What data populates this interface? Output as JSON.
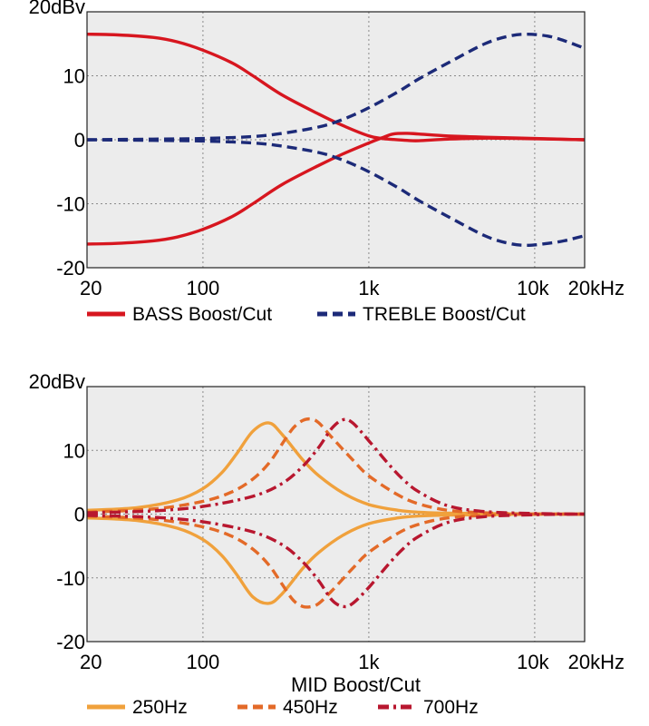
{
  "chart_data": [
    {
      "type": "line",
      "title": "",
      "xlabel": "",
      "ylabel": "",
      "x_scale": "log",
      "xlim": [
        20,
        20000
      ],
      "ylim": [
        -20,
        20
      ],
      "x_ticks": [
        {
          "value": 20,
          "label": "20"
        },
        {
          "value": 100,
          "label": "100"
        },
        {
          "value": 1000,
          "label": "1k"
        },
        {
          "value": 10000,
          "label": "10k"
        },
        {
          "value": 20000,
          "label": "20kHz"
        }
      ],
      "y_ticks": [
        {
          "value": 20,
          "label": "20dBv"
        },
        {
          "value": 10,
          "label": "10"
        },
        {
          "value": 0,
          "label": "0"
        },
        {
          "value": -10,
          "label": "-10"
        },
        {
          "value": -20,
          "label": "-20"
        }
      ],
      "grid": true,
      "legend_position": "bottom",
      "legend": [
        {
          "label": "BASS Boost/Cut",
          "color": "#d7161f",
          "dash": "solid"
        },
        {
          "label": "TREBLE Boost/Cut",
          "color": "#1c2a78",
          "dash": "dashed"
        }
      ],
      "series": [
        {
          "color": "#d7161f",
          "dash": "solid",
          "x": [
            20,
            30,
            50,
            70,
            100,
            150,
            200,
            300,
            500,
            700,
            1000,
            1200,
            1400,
            1700,
            2000,
            3000,
            5000,
            10000,
            20000
          ],
          "y": [
            16.5,
            16.4,
            16,
            15.3,
            14,
            12,
            10,
            7,
            4,
            2.2,
            0.6,
            0.2,
            0.05,
            -0.1,
            -0.15,
            0.1,
            0.25,
            0.15,
            0
          ]
        },
        {
          "color": "#d7161f",
          "dash": "solid",
          "x": [
            20,
            30,
            50,
            70,
            100,
            150,
            200,
            300,
            500,
            700,
            1000,
            1200,
            1400,
            1700,
            2000,
            3000,
            5000,
            10000,
            20000
          ],
          "y": [
            -16.3,
            -16.2,
            -15.8,
            -15.2,
            -14,
            -12,
            -10,
            -7,
            -4,
            -2.2,
            -0.5,
            0.3,
            0.9,
            1,
            0.9,
            0.6,
            0.4,
            0.2,
            0
          ]
        },
        {
          "color": "#1c2a78",
          "dash": "dashed",
          "x": [
            20,
            50,
            100,
            200,
            300,
            500,
            700,
            1000,
            1500,
            2000,
            3000,
            5000,
            7000,
            9000,
            12000,
            15000,
            20000
          ],
          "y": [
            0,
            0.1,
            0.2,
            0.5,
            1,
            2,
            3.2,
            5,
            7.5,
            9.5,
            12,
            15,
            16.2,
            16.5,
            16.2,
            15.5,
            14.3
          ]
        },
        {
          "color": "#1c2a78",
          "dash": "dashed",
          "x": [
            20,
            50,
            100,
            200,
            300,
            500,
            700,
            1000,
            1500,
            2000,
            3000,
            5000,
            7000,
            9000,
            12000,
            15000,
            20000
          ],
          "y": [
            0,
            -0.1,
            -0.2,
            -0.5,
            -1,
            -2,
            -3.2,
            -5,
            -7.5,
            -9.5,
            -12,
            -15,
            -16.2,
            -16.5,
            -16.2,
            -15.8,
            -15
          ]
        }
      ]
    },
    {
      "type": "line",
      "title": "",
      "xlabel": "MID Boost/Cut",
      "ylabel": "",
      "x_scale": "log",
      "xlim": [
        20,
        20000
      ],
      "ylim": [
        -20,
        20
      ],
      "x_ticks": [
        {
          "value": 20,
          "label": "20"
        },
        {
          "value": 100,
          "label": "100"
        },
        {
          "value": 1000,
          "label": "1k"
        },
        {
          "value": 10000,
          "label": "10k"
        },
        {
          "value": 20000,
          "label": "20kHz"
        }
      ],
      "y_ticks": [
        {
          "value": 20,
          "label": "20dBv"
        },
        {
          "value": 10,
          "label": "10"
        },
        {
          "value": 0,
          "label": "0"
        },
        {
          "value": -10,
          "label": "-10"
        },
        {
          "value": -20,
          "label": "-20"
        }
      ],
      "grid": true,
      "legend_position": "bottom",
      "legend": [
        {
          "label": "250Hz",
          "color": "#f0a13c",
          "dash": "solid"
        },
        {
          "label": "450Hz",
          "color": "#e36a28",
          "dash": "dashed"
        },
        {
          "label": "700Hz",
          "color": "#b8172f",
          "dash": "dashdot"
        }
      ],
      "series": [
        {
          "color": "#f0a13c",
          "dash": "solid",
          "x": [
            20,
            40,
            70,
            100,
            130,
            160,
            200,
            250,
            300,
            400,
            500,
            700,
            1000,
            1500,
            2000,
            3000,
            5000,
            10000,
            20000
          ],
          "y": [
            0.6,
            1,
            2.2,
            4,
            6.5,
            9.5,
            13,
            14.3,
            12.5,
            8.5,
            6,
            3.3,
            1.5,
            0.6,
            0.3,
            0.15,
            0.1,
            0,
            0
          ]
        },
        {
          "color": "#f0a13c",
          "dash": "solid",
          "x": [
            20,
            40,
            70,
            100,
            130,
            160,
            200,
            250,
            300,
            400,
            500,
            700,
            1000,
            1500,
            2000,
            3000,
            5000,
            10000,
            20000
          ],
          "y": [
            -0.6,
            -1,
            -2.2,
            -4,
            -6.5,
            -9.5,
            -13,
            -14,
            -12.5,
            -8.5,
            -6,
            -3.3,
            -1.5,
            -0.6,
            -0.3,
            -0.15,
            -0.1,
            0,
            0
          ]
        },
        {
          "color": "#e36a28",
          "dash": "dashed",
          "x": [
            20,
            50,
            100,
            150,
            200,
            250,
            300,
            350,
            400,
            450,
            500,
            600,
            800,
            1000,
            1500,
            2000,
            3000,
            5000,
            10000,
            20000
          ],
          "y": [
            0.3,
            0.8,
            2,
            3.5,
            5.5,
            8,
            11,
            13.5,
            14.7,
            14.9,
            14.3,
            12,
            8.5,
            6,
            3,
            1.6,
            0.6,
            0.2,
            0,
            0
          ]
        },
        {
          "color": "#e36a28",
          "dash": "dashed",
          "x": [
            20,
            50,
            100,
            150,
            200,
            250,
            300,
            350,
            400,
            450,
            500,
            600,
            800,
            1000,
            1500,
            2000,
            3000,
            5000,
            10000,
            20000
          ],
          "y": [
            -0.3,
            -0.8,
            -2,
            -3.5,
            -5.5,
            -8,
            -11,
            -13.5,
            -14.5,
            -14.5,
            -14,
            -12,
            -8.5,
            -6,
            -3,
            -1.6,
            -0.6,
            -0.2,
            0,
            0
          ]
        },
        {
          "color": "#b8172f",
          "dash": "dashdot",
          "x": [
            20,
            50,
            100,
            200,
            300,
            400,
            500,
            600,
            700,
            800,
            1000,
            1300,
            1600,
            2000,
            3000,
            5000,
            10000,
            20000
          ],
          "y": [
            0.2,
            0.5,
            1.2,
            2.8,
            4.8,
            7.5,
            10.5,
            13.5,
            14.8,
            14.3,
            11.5,
            8,
            5.5,
            3.5,
            1.3,
            0.4,
            0.1,
            0
          ]
        },
        {
          "color": "#b8172f",
          "dash": "dashdot",
          "x": [
            20,
            50,
            100,
            200,
            300,
            400,
            500,
            600,
            700,
            800,
            1000,
            1300,
            1600,
            2000,
            3000,
            5000,
            10000,
            20000
          ],
          "y": [
            -0.2,
            -0.5,
            -1.2,
            -2.8,
            -4.8,
            -7.5,
            -10.5,
            -13.5,
            -14.5,
            -14,
            -11.5,
            -8,
            -5.5,
            -3.5,
            -1.3,
            -0.4,
            -0.1,
            0
          ]
        }
      ]
    }
  ]
}
